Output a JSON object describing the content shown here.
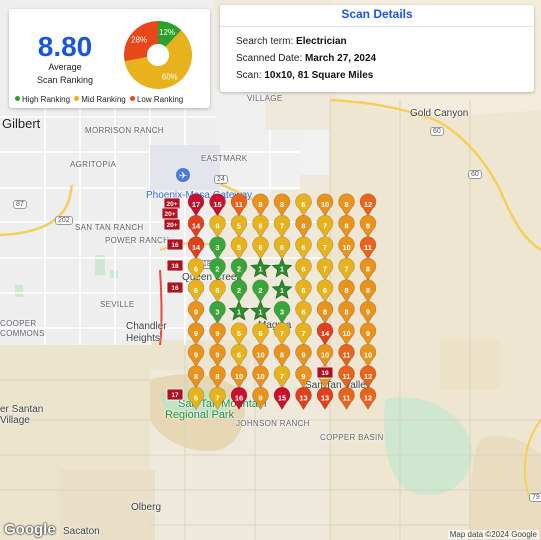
{
  "score": {
    "value": "8.80",
    "caption_line1": "Average",
    "caption_line2": "Scan Ranking",
    "donut": [
      {
        "label": "12%",
        "fraction": 0.12,
        "color": "#2ca02c"
      },
      {
        "label": "60%",
        "fraction": 0.6,
        "color": "#e8b21c"
      },
      {
        "label": "28%",
        "fraction": 0.28,
        "color": "#e8471c"
      }
    ],
    "legend": [
      {
        "label": "High Ranking",
        "color": "#2ca02c"
      },
      {
        "label": "Mid Ranking",
        "color": "#e8b21c"
      },
      {
        "label": "Low Ranking",
        "color": "#e8471c"
      }
    ]
  },
  "scan": {
    "title": "Scan Details",
    "search_term_label": "Search term:",
    "search_term": "Electrician",
    "scanned_date_label": "Scanned Date:",
    "scanned_date": "March 27, 2024",
    "scan_label": "Scan:",
    "scan_value": "10x10, 81 Square Miles"
  },
  "map": {
    "labels": {
      "gilbert": "Gilbert",
      "morrison_ranch": "MORRISON RANCH",
      "agritopia": "AGRITOPIA",
      "san_tan_ranch": "SAN TAN RANCH",
      "power_ranch": "POWER RANCH",
      "seville": "SEVILLE",
      "cooper_commons": "COOPER COMMONS",
      "chandler_heights": "Chandler Heights",
      "eastmark": "EASTMARK",
      "village": "VILLAGE",
      "gold_canyon": "Gold Canyon",
      "queen_creek": "Queen Creek",
      "magma": "Magma",
      "san_tan_mountain": "San Tan Mountain",
      "regional_park": "Regional Park",
      "johnson_ranch": "JOHNSON RANCH",
      "copper_basin": "COPPER BASIN",
      "san_tan_valley": "San Tan Valley",
      "santan_village": "er Santan Village",
      "olberg": "Olberg",
      "sacaton": "Sacaton",
      "phoenix_mesa": "Phoenix-Mesa Gateway"
    },
    "route_shields": [
      "202",
      "24",
      "60",
      "60",
      "79",
      "87",
      "187"
    ],
    "grid": [
      [
        17,
        15,
        11,
        8,
        8,
        6,
        10,
        8,
        12
      ],
      [
        14,
        6,
        5,
        6,
        7,
        8,
        7,
        8,
        8
      ],
      [
        14,
        3,
        5,
        6,
        6,
        6,
        7,
        10,
        11
      ],
      [
        6,
        2,
        2,
        1,
        1,
        6,
        7,
        7,
        8
      ],
      [
        6,
        6,
        2,
        2,
        1,
        6,
        6,
        8,
        8
      ],
      [
        9,
        3,
        1,
        1,
        3,
        6,
        8,
        8,
        9
      ],
      [
        9,
        9,
        5,
        6,
        7,
        7,
        14,
        10,
        9
      ],
      [
        9,
        9,
        6,
        10,
        8,
        9,
        10,
        11,
        10
      ],
      [
        8,
        8,
        10,
        10,
        7,
        9,
        10,
        11,
        12
      ],
      [
        6,
        7,
        16,
        9,
        15,
        13,
        13,
        11,
        12
      ]
    ],
    "edge_markers": [
      "20+",
      "20+",
      "20+",
      "16",
      "18",
      "16",
      "17",
      "19"
    ],
    "google": "Google",
    "attribution": "Map data ©2024 Google"
  }
}
